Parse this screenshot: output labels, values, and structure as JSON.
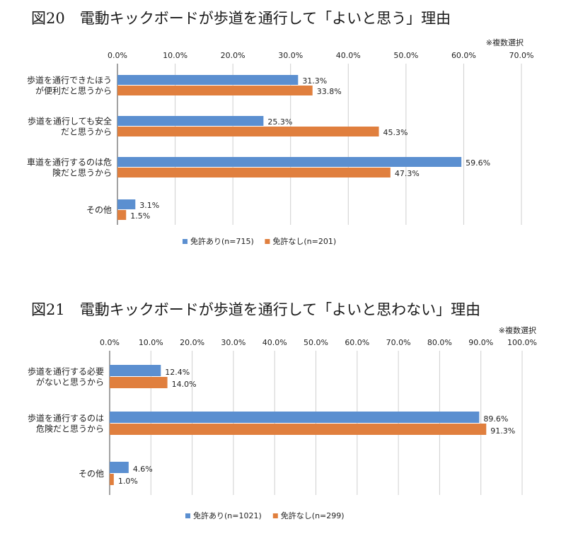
{
  "chart_data": [
    {
      "type": "bar",
      "orientation": "horizontal",
      "title": "図20　電動キックボードが歩道を通行して「よいと思う」理由",
      "note": "※複数選択",
      "categories": [
        [
          "歩道を通行できたほう",
          "が便利だと思うから"
        ],
        [
          "歩道を通行しても安全",
          "だと思うから"
        ],
        [
          "車道を通行するのは危",
          "険だと思うから"
        ],
        [
          "その他"
        ]
      ],
      "series": [
        {
          "name": "免許あり(n=715)",
          "color": "#5b8fd0",
          "values": [
            31.3,
            25.3,
            59.6,
            3.1
          ],
          "labels": [
            "31.3%",
            "25.3%",
            "59.6%",
            "3.1%"
          ]
        },
        {
          "name": "免許なし(n=201)",
          "color": "#e07f3e",
          "values": [
            33.8,
            45.3,
            47.3,
            1.5
          ],
          "labels": [
            "33.8%",
            "45.3%",
            "47.3%",
            "1.5%"
          ]
        }
      ],
      "xlim": [
        0,
        70
      ],
      "ticks": [
        "0.0%",
        "10.0%",
        "20.0%",
        "30.0%",
        "40.0%",
        "50.0%",
        "60.0%",
        "70.0%"
      ],
      "grid": true,
      "legend_position": "bottom"
    },
    {
      "type": "bar",
      "orientation": "horizontal",
      "title": "図21　電動キックボードが歩道を通行して「よいと思わない」理由",
      "note": "※複数選択",
      "categories": [
        [
          "歩道を通行する必要",
          "がないと思うから"
        ],
        [
          "歩道を通行するのは",
          "危険だと思うから"
        ],
        [
          "その他"
        ]
      ],
      "series": [
        {
          "name": "免許あり(n=1021)",
          "color": "#5b8fd0",
          "values": [
            12.4,
            89.6,
            4.6
          ],
          "labels": [
            "12.4%",
            "89.6%",
            "4.6%"
          ]
        },
        {
          "name": "免許なし(n=299)",
          "color": "#e07f3e",
          "values": [
            14.0,
            91.3,
            1.0
          ],
          "labels": [
            "14.0%",
            "91.3%",
            "1.0%"
          ]
        }
      ],
      "xlim": [
        0,
        100
      ],
      "ticks": [
        "0.0%",
        "10.0%",
        "20.0%",
        "30.0%",
        "40.0%",
        "50.0%",
        "60.0%",
        "70.0%",
        "80.0%",
        "90.0%",
        "100.0%"
      ],
      "grid": true,
      "legend_position": "bottom"
    }
  ]
}
